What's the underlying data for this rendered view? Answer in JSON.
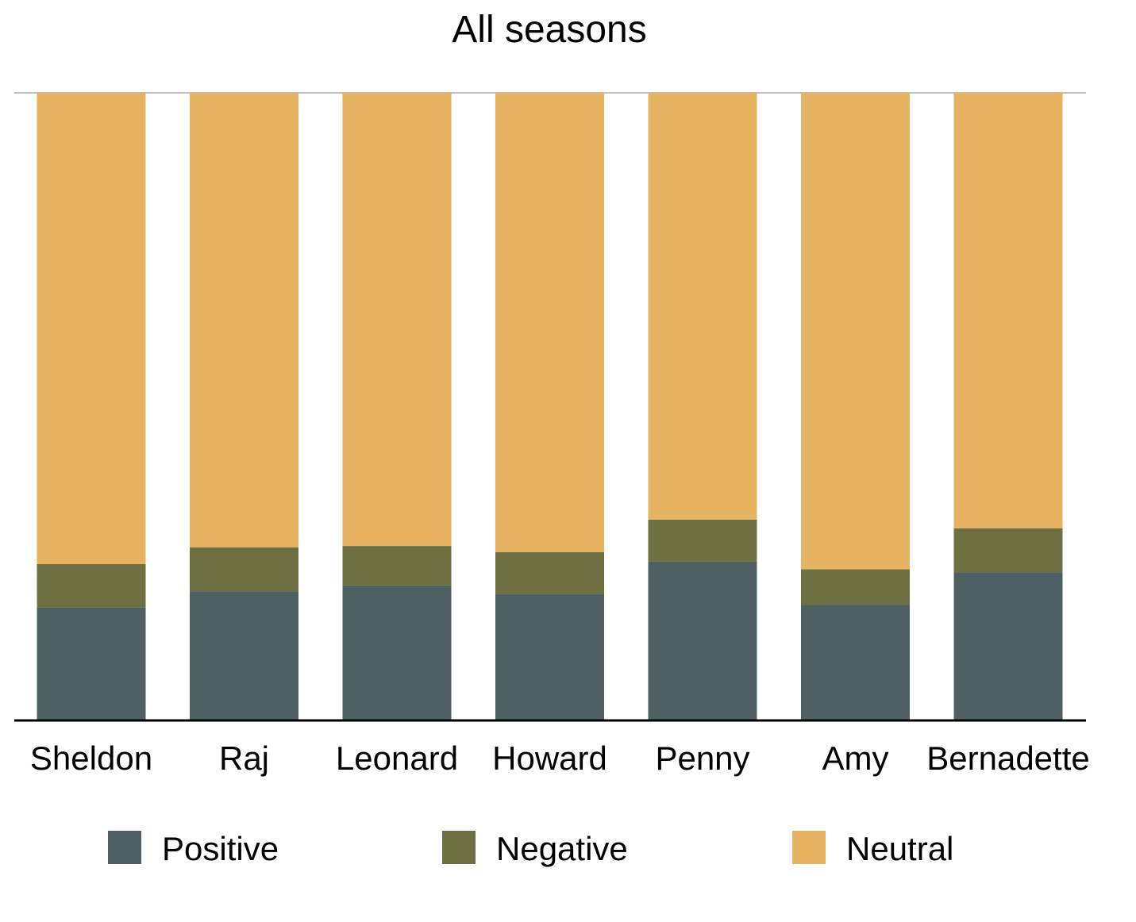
{
  "chart_data": {
    "type": "bar",
    "stacked": true,
    "normalized_percent": true,
    "title": "All seasons",
    "xlabel": "",
    "ylabel": "",
    "ylim": [
      0,
      100
    ],
    "grid": false,
    "legend_position": "bottom",
    "categories": [
      "Sheldon",
      "Raj",
      "Leonard",
      "Howard",
      "Penny",
      "Amy",
      "Bernadette"
    ],
    "series": [
      {
        "name": "Positive",
        "color": "#4f6064",
        "values": [
          18,
          20.6,
          21.5,
          20.2,
          25.3,
          18.4,
          23.6
        ]
      },
      {
        "name": "Negative",
        "color": "#6e7041",
        "values": [
          6.9,
          7,
          6.3,
          6.6,
          6.7,
          5.7,
          7
        ]
      },
      {
        "name": "Neutral",
        "color": "#e6b363",
        "values": [
          75.1,
          72.4,
          72.2,
          73.2,
          68,
          75.9,
          69.4
        ]
      }
    ]
  }
}
